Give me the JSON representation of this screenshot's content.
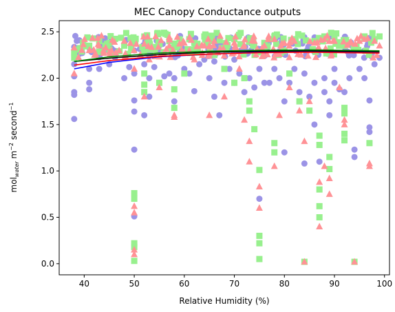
{
  "chart_data": {
    "type": "scatter",
    "title": "MEC Canopy Conductance outputs",
    "xlabel": "Relative Humidity (%)",
    "ylabel": {
      "prefix": "mol",
      "subscript": "water",
      "middle": " m",
      "superscript1": "−2",
      "suffix": " second",
      "superscript2": "−1"
    },
    "xlim": [
      35,
      101
    ],
    "ylim": [
      -0.12,
      2.62
    ],
    "xticks": [
      "40",
      "50",
      "60",
      "70",
      "80",
      "90",
      "100"
    ],
    "yticks": [
      "0.0",
      "0.5",
      "1.0",
      "1.5",
      "2.0",
      "2.5"
    ],
    "grid": false,
    "colors": {
      "circle": "#9b93e6",
      "square": "#98f08e",
      "triangle": "#ff9296",
      "fit_blue": "#0000ff",
      "fit_red": "#ff0000",
      "fit_green": "#008000",
      "fit_black": "#000000"
    },
    "fit_lines": [
      {
        "color": "blue",
        "x": [
          38,
          45,
          55,
          65,
          75,
          85,
          99
        ],
        "y": [
          2.1,
          2.17,
          2.23,
          2.26,
          2.28,
          2.285,
          2.275
        ]
      },
      {
        "color": "red",
        "x": [
          38,
          45,
          55,
          65,
          75,
          85,
          99
        ],
        "y": [
          2.14,
          2.19,
          2.235,
          2.26,
          2.275,
          2.28,
          2.27
        ]
      },
      {
        "color": "black",
        "x": [
          38,
          45,
          55,
          65,
          75,
          85,
          99
        ],
        "y": [
          2.18,
          2.215,
          2.255,
          2.28,
          2.29,
          2.295,
          2.285
        ]
      },
      {
        "color": "green",
        "x": [
          38,
          45,
          55,
          65,
          75,
          85,
          99
        ],
        "y": [
          2.18,
          2.23,
          2.27,
          2.29,
          2.3,
          2.305,
          2.295
        ]
      }
    ],
    "series": [
      {
        "marker": "circle",
        "points": [
          [
            38,
            1.56
          ],
          [
            38,
            1.82
          ],
          [
            38,
            1.85
          ],
          [
            38,
            2.02
          ],
          [
            38,
            2.15
          ],
          [
            41,
            1.88
          ],
          [
            41,
            1.95
          ],
          [
            41,
            2.1
          ],
          [
            43,
            2.1
          ],
          [
            45,
            2.15
          ],
          [
            48,
            2.0
          ],
          [
            49,
            2.12
          ],
          [
            50,
            1.23
          ],
          [
            50,
            1.64
          ],
          [
            50,
            1.76
          ],
          [
            50,
            0.51
          ],
          [
            50,
            2.05
          ],
          [
            50,
            2.3
          ],
          [
            52,
            1.6
          ],
          [
            52,
            2.15
          ],
          [
            53,
            1.8
          ],
          [
            53,
            2.0
          ],
          [
            54,
            2.12
          ],
          [
            55,
            2.35
          ],
          [
            56,
            2.02
          ],
          [
            57,
            2.05
          ],
          [
            58,
            1.75
          ],
          [
            58,
            2.0
          ],
          [
            59,
            2.32
          ],
          [
            60,
            2.1
          ],
          [
            61,
            2.05
          ],
          [
            62,
            1.86
          ],
          [
            63,
            2.15
          ],
          [
            64,
            2.2
          ],
          [
            65,
            2.0
          ],
          [
            66,
            1.8
          ],
          [
            66,
            2.18
          ],
          [
            67,
            1.6
          ],
          [
            68,
            1.95
          ],
          [
            69,
            2.1
          ],
          [
            70,
            1.95
          ],
          [
            70,
            2.2
          ],
          [
            71,
            2.05
          ],
          [
            72,
            1.85
          ],
          [
            73,
            2.0
          ],
          [
            74,
            1.9
          ],
          [
            75,
            0.7
          ],
          [
            75,
            2.1
          ],
          [
            76,
            1.95
          ],
          [
            77,
            1.95
          ],
          [
            78,
            2.1
          ],
          [
            79,
            2.0
          ],
          [
            80,
            1.2
          ],
          [
            80,
            1.75
          ],
          [
            81,
            1.95
          ],
          [
            82,
            2.1
          ],
          [
            83,
            1.85
          ],
          [
            84,
            1.08
          ],
          [
            84,
            2.05
          ],
          [
            85,
            1.8
          ],
          [
            86,
            1.5
          ],
          [
            86,
            1.95
          ],
          [
            87,
            1.1
          ],
          [
            88,
            1.85
          ],
          [
            88,
            2.0
          ],
          [
            89,
            1.6
          ],
          [
            89,
            1.75
          ],
          [
            90,
            1.95
          ],
          [
            90,
            2.1
          ],
          [
            91,
            1.88
          ],
          [
            92,
            1.85
          ],
          [
            93,
            2.0
          ],
          [
            94,
            1.23
          ],
          [
            94,
            1.15
          ],
          [
            95,
            2.1
          ],
          [
            96,
            2.0
          ],
          [
            97,
            1.42
          ],
          [
            97,
            1.47
          ],
          [
            97,
            1.76
          ],
          [
            98,
            2.15
          ],
          [
            99,
            2.22
          ]
        ]
      },
      {
        "marker": "square",
        "points": [
          [
            38,
            2.28
          ],
          [
            38,
            2.22
          ],
          [
            41,
            2.35
          ],
          [
            43,
            2.4
          ],
          [
            45,
            2.38
          ],
          [
            48,
            2.35
          ],
          [
            50,
            0.76
          ],
          [
            50,
            0.7
          ],
          [
            50,
            0.22
          ],
          [
            50,
            0.18
          ],
          [
            50,
            0.03
          ],
          [
            50,
            2.38
          ],
          [
            52,
            1.93
          ],
          [
            52,
            1.85
          ],
          [
            52,
            2.05
          ],
          [
            53,
            2.4
          ],
          [
            55,
            1.95
          ],
          [
            57,
            2.4
          ],
          [
            58,
            1.88
          ],
          [
            58,
            1.68
          ],
          [
            60,
            2.05
          ],
          [
            61,
            2.42
          ],
          [
            62,
            2.38
          ],
          [
            64,
            2.45
          ],
          [
            65,
            2.4
          ],
          [
            66,
            2.25
          ],
          [
            68,
            2.1
          ],
          [
            70,
            1.95
          ],
          [
            70,
            2.42
          ],
          [
            72,
            2.0
          ],
          [
            73,
            1.75
          ],
          [
            73,
            1.65
          ],
          [
            74,
            1.45
          ],
          [
            75,
            1.01
          ],
          [
            75,
            0.3
          ],
          [
            75,
            0.22
          ],
          [
            75,
            0.05
          ],
          [
            76,
            2.38
          ],
          [
            78,
            1.3
          ],
          [
            78,
            1.2
          ],
          [
            78,
            2.45
          ],
          [
            80,
            2.3
          ],
          [
            81,
            2.05
          ],
          [
            82,
            2.42
          ],
          [
            83,
            1.75
          ],
          [
            84,
            0.02
          ],
          [
            85,
            1.65
          ],
          [
            86,
            2.4
          ],
          [
            87,
            1.38
          ],
          [
            87,
            1.28
          ],
          [
            87,
            0.8
          ],
          [
            87,
            0.62
          ],
          [
            87,
            0.5
          ],
          [
            88,
            2.45
          ],
          [
            89,
            1.15
          ],
          [
            89,
            1.02
          ],
          [
            90,
            2.45
          ],
          [
            92,
            1.4
          ],
          [
            92,
            1.33
          ],
          [
            92,
            1.62
          ],
          [
            92,
            1.68
          ],
          [
            94,
            0.02
          ],
          [
            96,
            2.45
          ],
          [
            97,
            1.3
          ],
          [
            98,
            2.42
          ],
          [
            99,
            2.45
          ]
        ]
      },
      {
        "marker": "triangle",
        "points": [
          [
            38,
            2.05
          ],
          [
            41,
            2.3
          ],
          [
            43,
            2.35
          ],
          [
            45,
            2.28
          ],
          [
            48,
            2.4
          ],
          [
            50,
            0.62
          ],
          [
            50,
            0.55
          ],
          [
            50,
            0.15
          ],
          [
            50,
            0.1
          ],
          [
            50,
            2.1
          ],
          [
            52,
            1.8
          ],
          [
            53,
            2.2
          ],
          [
            55,
            1.9
          ],
          [
            57,
            2.35
          ],
          [
            58,
            1.6
          ],
          [
            58,
            1.58
          ],
          [
            60,
            2.38
          ],
          [
            61,
            2.3
          ],
          [
            62,
            2.2
          ],
          [
            64,
            2.35
          ],
          [
            65,
            1.6
          ],
          [
            66,
            2.4
          ],
          [
            68,
            1.8
          ],
          [
            70,
            2.38
          ],
          [
            71,
            2.1
          ],
          [
            72,
            1.55
          ],
          [
            73,
            1.32
          ],
          [
            73,
            1.1
          ],
          [
            74,
            2.4
          ],
          [
            75,
            0.83
          ],
          [
            75,
            0.6
          ],
          [
            76,
            2.35
          ],
          [
            78,
            1.05
          ],
          [
            78,
            2.42
          ],
          [
            79,
            1.6
          ],
          [
            80,
            2.38
          ],
          [
            81,
            1.9
          ],
          [
            82,
            2.4
          ],
          [
            83,
            1.65
          ],
          [
            84,
            1.32
          ],
          [
            84,
            0.02
          ],
          [
            85,
            1.75
          ],
          [
            86,
            2.38
          ],
          [
            87,
            0.88
          ],
          [
            87,
            0.4
          ],
          [
            88,
            1.05
          ],
          [
            88,
            2.42
          ],
          [
            89,
            0.92
          ],
          [
            89,
            0.75
          ],
          [
            90,
            2.4
          ],
          [
            91,
            1.9
          ],
          [
            92,
            1.55
          ],
          [
            92,
            1.5
          ],
          [
            93,
            2.38
          ],
          [
            94,
            0.02
          ],
          [
            95,
            2.4
          ],
          [
            96,
            2.42
          ],
          [
            97,
            1.08
          ],
          [
            97,
            1.05
          ],
          [
            98,
            2.4
          ],
          [
            99,
            2.35
          ]
        ]
      }
    ]
  }
}
